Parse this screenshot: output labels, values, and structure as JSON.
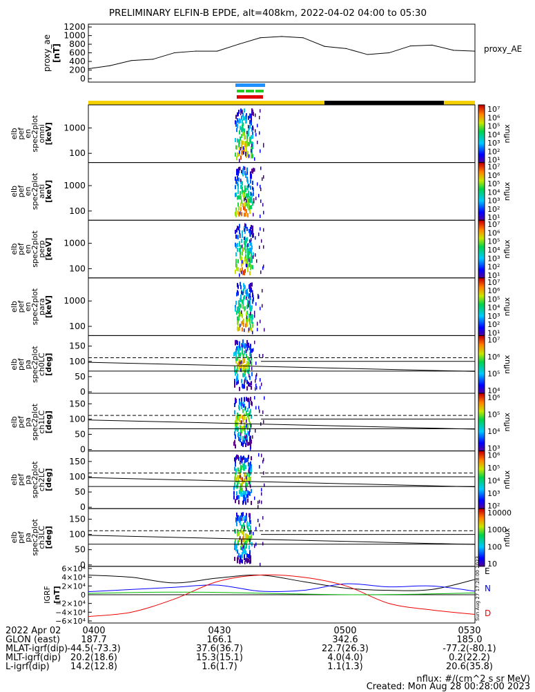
{
  "title": "PRELIMINARY ELFIN-B EPDE, alt=408km, 2022-04-02 04:00 to 05:30",
  "colors": {
    "bar_yellow": "#f5d000",
    "bar_black": "#000000",
    "bar_blue": "#1e90ff",
    "bar_green": "#22cc22",
    "bar_red": "#e00000",
    "bx": "#0000ff",
    "by": "#00bb00",
    "bz": "#ee0000"
  },
  "panels": [
    {
      "ylabel": [
        "elb",
        "pef",
        "en",
        "spec2plot",
        "omni",
        "[keV]"
      ],
      "ticks": [
        "1000",
        "100"
      ],
      "cb_labels": [
        "10⁷",
        "10⁶",
        "10⁵",
        "10⁴",
        "10³",
        "10²",
        "10¹"
      ],
      "cb_title": "nflux"
    },
    {
      "ylabel": [
        "elb",
        "pef",
        "en",
        "spec2plot",
        "anti",
        "[keV]"
      ],
      "ticks": [
        "1000",
        "100"
      ],
      "cb_labels": [
        "10⁷",
        "10⁶",
        "10⁵",
        "10⁴",
        "10³",
        "10²",
        "10¹"
      ],
      "cb_title": "nflux"
    },
    {
      "ylabel": [
        "elb",
        "pef",
        "en",
        "spec2plot",
        "perp",
        "[keV]"
      ],
      "ticks": [
        "1000",
        "100"
      ],
      "cb_labels": [
        "10⁷",
        "10⁶",
        "10⁵",
        "10⁴",
        "10³",
        "10²",
        "10¹"
      ],
      "cb_title": "nflux"
    },
    {
      "ylabel": [
        "elb",
        "pef",
        "en",
        "spec2plot",
        "para",
        "[keV]"
      ],
      "ticks": [
        "1000",
        "100"
      ],
      "cb_labels": [
        "10⁷",
        "10⁶",
        "10⁵",
        "10⁴",
        "10³",
        "10²",
        "10¹"
      ],
      "cb_title": "nflux"
    },
    {
      "ylabel": [
        "elb",
        "pef",
        "pa",
        "spec2plot",
        "ch0LC",
        "[deg]"
      ],
      "ticks": [
        "150",
        "100",
        "50",
        "0"
      ],
      "cb_labels": [
        "10⁷",
        "10⁶",
        "10⁵",
        "10⁴"
      ],
      "cb_title": "nflux"
    },
    {
      "ylabel": [
        "elb",
        "pef",
        "pa",
        "spec2plot",
        "ch1LC",
        "[deg]"
      ],
      "ticks": [
        "150",
        "100",
        "50",
        "0"
      ],
      "cb_labels": [
        "10⁶",
        "10⁵",
        "10⁴",
        "10³"
      ],
      "cb_title": "nflux"
    },
    {
      "ylabel": [
        "elb",
        "pef",
        "pa",
        "spec2plot",
        "ch2LC",
        "[deg]"
      ],
      "ticks": [
        "150",
        "100",
        "50",
        "0"
      ],
      "cb_labels": [
        "10⁶",
        "10⁵",
        "10⁴",
        "10³",
        "10²"
      ],
      "cb_title": "nflux"
    },
    {
      "ylabel": [
        "elb",
        "pef",
        "pa",
        "spec2plot",
        "ch3LC",
        "[deg]"
      ],
      "ticks": [
        "150",
        "100",
        "50",
        "0"
      ],
      "cb_labels": [
        "10000",
        "1000",
        "100",
        "10"
      ],
      "cb_title": "nflux"
    }
  ],
  "igrf": {
    "ylabel": [
      "IGRF",
      "[nT]"
    ],
    "ticks": [
      "6×10⁴",
      "4×10⁴",
      "2×10⁴",
      "0",
      "−2×10⁴",
      "−4×10⁴",
      "−6×10⁴"
    ],
    "legend": [
      "E",
      "N",
      "D"
    ],
    "stamp": "Sun Aug 27 17:28:00 2023"
  },
  "footer": {
    "labels": [
      "2022 Apr 02",
      "GLON (east)",
      "MLAT-igrf(dip)",
      "MLT-igrf(dip)",
      "L-igrf(dip)"
    ],
    "columns": [
      [
        "0400",
        "187.7",
        "-44.5(-73.3)",
        "20.2(18.6)",
        "14.2(12.8)"
      ],
      [
        "0430",
        "166.1",
        "37.6(36.7)",
        "15.3(15.1)",
        "1.6(1.7)"
      ],
      [
        "0500",
        "342.6",
        "22.7(26.3)",
        "4.0(4.0)",
        "1.1(1.3)"
      ],
      [
        "0530",
        "185.0",
        "-77.2(-80.1)",
        "0.2(22.2)",
        "20.6(35.8)"
      ]
    ],
    "note1": "nflux: #/(cm^2 s sr MeV)",
    "note2": "Created: Mon Aug 28 00:28:00 2023"
  },
  "chart_data": [
    {
      "type": "line",
      "ylabel": "proxy_ae [nT]",
      "legend": "proxy_AE",
      "yticks": [
        "1200",
        "1000",
        "800",
        "600",
        "400",
        "200",
        "0"
      ],
      "ylim": [
        0,
        1250
      ],
      "x": [
        "04:00",
        "04:05",
        "04:10",
        "04:15",
        "04:20",
        "04:25",
        "04:30",
        "04:35",
        "04:40",
        "04:45",
        "04:50",
        "04:55",
        "05:00",
        "05:05",
        "05:10",
        "05:15",
        "05:20",
        "05:25",
        "05:30"
      ],
      "values": [
        230,
        300,
        420,
        450,
        600,
        640,
        640,
        800,
        950,
        980,
        950,
        750,
        700,
        560,
        600,
        760,
        780,
        660,
        640
      ]
    },
    {
      "type": "line",
      "ylabel": "IGRF [nT]",
      "ylim": [
        -60000,
        60000
      ],
      "x": [
        "04:00",
        "04:10",
        "04:20",
        "04:30",
        "04:40",
        "04:50",
        "05:00",
        "05:10",
        "05:20",
        "05:30"
      ],
      "series": [
        {
          "name": "E",
          "values": [
            45000,
            40000,
            27000,
            38000,
            45000,
            30000,
            15000,
            10000,
            12000,
            35000
          ]
        },
        {
          "name": "N",
          "values": [
            7000,
            12000,
            17000,
            22000,
            8000,
            10000,
            25000,
            18000,
            20000,
            8000
          ]
        },
        {
          "name": "D",
          "values": [
            -50000,
            -40000,
            -10000,
            30000,
            45000,
            40000,
            20000,
            -20000,
            -35000,
            -45000
          ]
        }
      ]
    }
  ]
}
